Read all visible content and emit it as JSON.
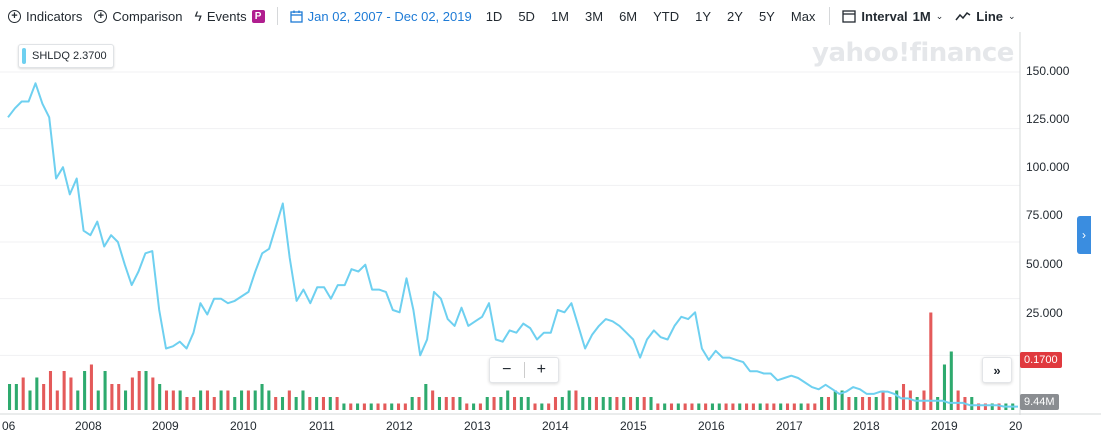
{
  "toolbar": {
    "indicators_label": "Indicators",
    "comparison_label": "Comparison",
    "events_label": "Events",
    "events_badge": "P",
    "date_range": "Jan 02, 2007 - Dec 02, 2019",
    "ranges": [
      "1D",
      "5D",
      "1M",
      "3M",
      "6M",
      "YTD",
      "1Y",
      "2Y",
      "5Y",
      "Max"
    ],
    "interval_label": "Interval",
    "interval_value": "1M",
    "chart_type_label": "Line"
  },
  "legend": {
    "symbol": "SHLDQ",
    "value": "2.3700"
  },
  "watermark": "yahoo!finance",
  "price_badge": "0.1700",
  "volume_badge": "9.44M",
  "zoom": {
    "minus": "−",
    "plus": "+"
  },
  "more_button": "»",
  "colors": {
    "line": "#6ed0f0",
    "up": "#2eaa6e",
    "down": "#e45a5a",
    "accent": "#1e7bd6"
  },
  "chart_data": {
    "type": "line",
    "x_ticks": [
      "06",
      "2008",
      "2009",
      "2010",
      "2011",
      "2012",
      "2013",
      "2014",
      "2015",
      "2016",
      "2017",
      "2018",
      "2019",
      "20"
    ],
    "y_ticks": [
      "150.000",
      "125.000",
      "100.000",
      "75.000",
      "50.000",
      "25.000"
    ],
    "ylim": [
      0,
      170
    ],
    "series": [
      {
        "values": [
          130,
          134,
          137,
          137,
          145,
          136,
          130,
          103,
          108,
          96,
          103,
          80,
          78,
          84,
          73,
          78,
          75,
          65,
          56,
          62,
          70,
          71,
          45,
          28,
          29,
          31,
          28,
          35,
          48,
          43,
          50,
          50,
          48,
          49,
          51,
          53,
          62,
          70,
          72,
          82,
          92,
          68,
          49,
          54,
          48,
          55,
          55,
          50,
          56,
          56,
          63,
          62,
          65,
          54,
          54,
          53,
          45,
          44,
          59,
          45,
          25,
          32,
          53,
          50,
          41,
          38,
          46,
          38,
          40,
          42,
          48,
          32,
          31,
          36,
          35,
          39,
          37,
          32,
          35,
          35,
          45,
          44,
          48,
          38,
          28,
          34,
          38,
          41,
          40,
          38,
          35,
          32,
          24,
          32,
          36,
          33,
          32,
          38,
          42,
          41,
          44,
          28,
          23,
          27,
          24,
          24,
          23,
          22,
          18,
          18,
          17,
          17,
          14,
          15,
          16,
          15,
          13,
          11,
          10,
          12,
          10,
          8,
          9,
          11,
          10,
          8,
          8,
          9,
          9,
          8,
          6,
          6,
          5,
          5,
          5,
          5,
          5,
          4,
          4,
          4,
          3,
          3,
          3,
          3,
          3,
          2.4,
          2.4,
          2.37
        ]
      }
    ],
    "volume": [
      {
        "v": 4,
        "up": 1
      },
      {
        "v": 4,
        "up": 1
      },
      {
        "v": 5,
        "up": 0
      },
      {
        "v": 3,
        "up": 1
      },
      {
        "v": 5,
        "up": 1
      },
      {
        "v": 4,
        "up": 0
      },
      {
        "v": 6,
        "up": 0
      },
      {
        "v": 3,
        "up": 0
      },
      {
        "v": 6,
        "up": 0
      },
      {
        "v": 5,
        "up": 0
      },
      {
        "v": 3,
        "up": 1
      },
      {
        "v": 6,
        "up": 1
      },
      {
        "v": 7,
        "up": 0
      },
      {
        "v": 3,
        "up": 1
      },
      {
        "v": 6,
        "up": 1
      },
      {
        "v": 4,
        "up": 0
      },
      {
        "v": 4,
        "up": 0
      },
      {
        "v": 3,
        "up": 1
      },
      {
        "v": 5,
        "up": 0
      },
      {
        "v": 6,
        "up": 0
      },
      {
        "v": 6,
        "up": 1
      },
      {
        "v": 5,
        "up": 0
      },
      {
        "v": 4,
        "up": 1
      },
      {
        "v": 3,
        "up": 0
      },
      {
        "v": 3,
        "up": 0
      },
      {
        "v": 3,
        "up": 1
      },
      {
        "v": 2,
        "up": 0
      },
      {
        "v": 2,
        "up": 0
      },
      {
        "v": 3,
        "up": 1
      },
      {
        "v": 3,
        "up": 0
      },
      {
        "v": 2,
        "up": 0
      },
      {
        "v": 3,
        "up": 1
      },
      {
        "v": 3,
        "up": 0
      },
      {
        "v": 2,
        "up": 1
      },
      {
        "v": 3,
        "up": 1
      },
      {
        "v": 3,
        "up": 0
      },
      {
        "v": 3,
        "up": 1
      },
      {
        "v": 4,
        "up": 1
      },
      {
        "v": 3,
        "up": 1
      },
      {
        "v": 2,
        "up": 0
      },
      {
        "v": 2,
        "up": 1
      },
      {
        "v": 3,
        "up": 0
      },
      {
        "v": 2,
        "up": 1
      },
      {
        "v": 3,
        "up": 1
      },
      {
        "v": 2,
        "up": 0
      },
      {
        "v": 2,
        "up": 1
      },
      {
        "v": 2,
        "up": 0
      },
      {
        "v": 2,
        "up": 1
      },
      {
        "v": 2,
        "up": 0
      },
      {
        "v": 1,
        "up": 1
      },
      {
        "v": 1,
        "up": 0
      },
      {
        "v": 1,
        "up": 1
      },
      {
        "v": 1,
        "up": 0
      },
      {
        "v": 1,
        "up": 1
      },
      {
        "v": 1,
        "up": 0
      },
      {
        "v": 1,
        "up": 0
      },
      {
        "v": 1,
        "up": 1
      },
      {
        "v": 1,
        "up": 0
      },
      {
        "v": 1,
        "up": 0
      },
      {
        "v": 2,
        "up": 1
      },
      {
        "v": 2,
        "up": 0
      },
      {
        "v": 4,
        "up": 1
      },
      {
        "v": 3,
        "up": 0
      },
      {
        "v": 2,
        "up": 1
      },
      {
        "v": 2,
        "up": 0
      },
      {
        "v": 2,
        "up": 0
      },
      {
        "v": 2,
        "up": 1
      },
      {
        "v": 1,
        "up": 0
      },
      {
        "v": 1,
        "up": 1
      },
      {
        "v": 1,
        "up": 0
      },
      {
        "v": 2,
        "up": 1
      },
      {
        "v": 2,
        "up": 0
      },
      {
        "v": 2,
        "up": 1
      },
      {
        "v": 3,
        "up": 1
      },
      {
        "v": 2,
        "up": 0
      },
      {
        "v": 2,
        "up": 1
      },
      {
        "v": 2,
        "up": 1
      },
      {
        "v": 1,
        "up": 0
      },
      {
        "v": 1,
        "up": 1
      },
      {
        "v": 1,
        "up": 0
      },
      {
        "v": 2,
        "up": 0
      },
      {
        "v": 2,
        "up": 1
      },
      {
        "v": 3,
        "up": 1
      },
      {
        "v": 3,
        "up": 0
      },
      {
        "v": 2,
        "up": 1
      },
      {
        "v": 2,
        "up": 1
      },
      {
        "v": 2,
        "up": 0
      },
      {
        "v": 2,
        "up": 1
      },
      {
        "v": 2,
        "up": 1
      },
      {
        "v": 2,
        "up": 0
      },
      {
        "v": 2,
        "up": 1
      },
      {
        "v": 2,
        "up": 0
      },
      {
        "v": 2,
        "up": 1
      },
      {
        "v": 2,
        "up": 0
      },
      {
        "v": 2,
        "up": 1
      },
      {
        "v": 1,
        "up": 0
      },
      {
        "v": 1,
        "up": 1
      },
      {
        "v": 1,
        "up": 0
      },
      {
        "v": 1,
        "up": 1
      },
      {
        "v": 1,
        "up": 0
      },
      {
        "v": 1,
        "up": 0
      },
      {
        "v": 1,
        "up": 1
      },
      {
        "v": 1,
        "up": 0
      },
      {
        "v": 1,
        "up": 1
      },
      {
        "v": 1,
        "up": 1
      },
      {
        "v": 1,
        "up": 0
      },
      {
        "v": 1,
        "up": 0
      },
      {
        "v": 1,
        "up": 1
      },
      {
        "v": 1,
        "up": 0
      },
      {
        "v": 1,
        "up": 0
      },
      {
        "v": 1,
        "up": 1
      },
      {
        "v": 1,
        "up": 0
      },
      {
        "v": 1,
        "up": 0
      },
      {
        "v": 1,
        "up": 1
      },
      {
        "v": 1,
        "up": 0
      },
      {
        "v": 1,
        "up": 0
      },
      {
        "v": 1,
        "up": 1
      },
      {
        "v": 1,
        "up": 0
      },
      {
        "v": 1,
        "up": 0
      },
      {
        "v": 2,
        "up": 1
      },
      {
        "v": 2,
        "up": 0
      },
      {
        "v": 3,
        "up": 1
      },
      {
        "v": 3,
        "up": 1
      },
      {
        "v": 2,
        "up": 0
      },
      {
        "v": 2,
        "up": 1
      },
      {
        "v": 2,
        "up": 0
      },
      {
        "v": 2,
        "up": 0
      },
      {
        "v": 2,
        "up": 1
      },
      {
        "v": 3,
        "up": 0
      },
      {
        "v": 2,
        "up": 0
      },
      {
        "v": 3,
        "up": 1
      },
      {
        "v": 4,
        "up": 0
      },
      {
        "v": 3,
        "up": 0
      },
      {
        "v": 2,
        "up": 1
      },
      {
        "v": 3,
        "up": 0
      },
      {
        "v": 15,
        "up": 0
      },
      {
        "v": 2,
        "up": 1
      },
      {
        "v": 7,
        "up": 1
      },
      {
        "v": 9,
        "up": 1
      },
      {
        "v": 3,
        "up": 0
      },
      {
        "v": 2,
        "up": 0
      },
      {
        "v": 2,
        "up": 1
      },
      {
        "v": 1,
        "up": 0
      },
      {
        "v": 1,
        "up": 0
      },
      {
        "v": 1,
        "up": 1
      },
      {
        "v": 1,
        "up": 0
      },
      {
        "v": 1,
        "up": 1
      },
      {
        "v": 1,
        "up": 1
      }
    ]
  }
}
